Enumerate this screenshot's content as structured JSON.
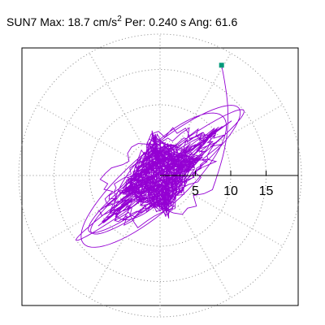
{
  "header": {
    "station": "SUN7",
    "max_label": "Max:",
    "max_value": "18.7",
    "max_unit": "cm/s",
    "max_unit_exp": "2",
    "per_label": "Per:",
    "per_value": "0.240 s",
    "ang_label": "Ang:",
    "ang_value": "61.6"
  },
  "chart_data": {
    "type": "scatter",
    "description_of_axes": "polar",
    "radial_ticks": [
      5,
      10,
      15
    ],
    "radial_tick_labels": [
      "5",
      "10",
      "15"
    ],
    "max_radius": 20,
    "angular_divisions_deg": 30,
    "grid": true,
    "trace_color": "#9400d3",
    "end_marker_color": "#00997a",
    "end_point": {
      "x": 8.7,
      "y": 15.6
    },
    "max_amplitude": 18.7,
    "orientation_deg": 61.6
  }
}
